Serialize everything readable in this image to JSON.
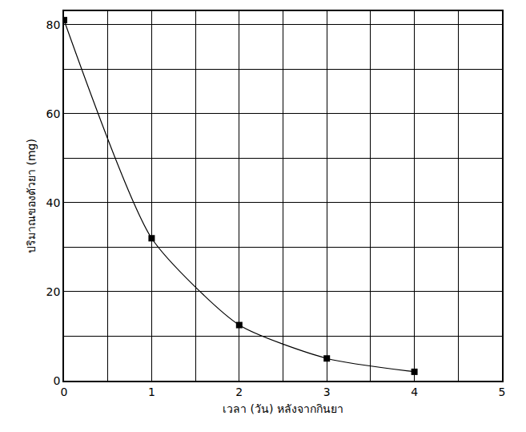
{
  "chart_data": {
    "type": "line",
    "x_label": "เวลา (วัน) หลังจากกินยา",
    "y_label": "ปริมาณของตัวยา (mg)",
    "x": [
      0,
      1,
      2,
      3,
      4
    ],
    "values": [
      81,
      32,
      12.5,
      5,
      2
    ],
    "color": "#000000",
    "marker": "square",
    "line_style": "solid",
    "xlim": [
      0,
      5
    ],
    "xticks": [
      0,
      1,
      2,
      3,
      4,
      5
    ],
    "ylim": [
      0,
      83
    ],
    "yticks": [
      0,
      20,
      40,
      60,
      80
    ],
    "grid": true
  }
}
